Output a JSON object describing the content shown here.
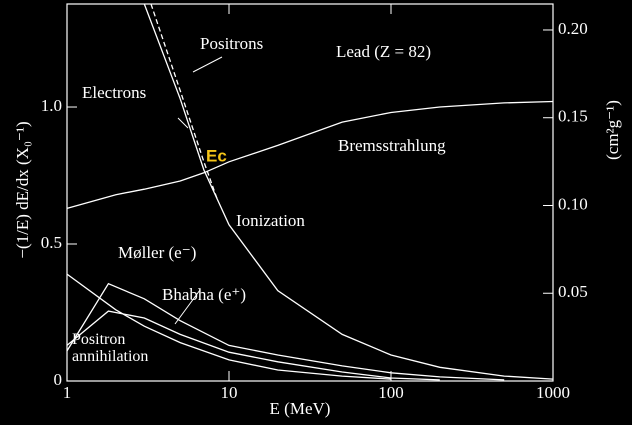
{
  "chart_data": {
    "type": "line",
    "x_label": "E (MeV)",
    "y_label": "−(1/E) dE/dx (X₀⁻¹)",
    "y2_label": "(cm²g⁻¹)",
    "annotations": [
      "Lead (Z = 82)",
      "Ionization",
      "Ec"
    ],
    "annotation_color": "#f5c518",
    "xscale": "log",
    "xlim": [
      1,
      1000
    ],
    "xticks": [
      1,
      10,
      100,
      1000
    ],
    "ylim": [
      0,
      1.376
    ],
    "yticks": [
      0,
      0.5,
      {
        "value": 1,
        "label": "1.0"
      }
    ],
    "y2lim": [
      0,
      0.2148
    ],
    "y2ticks": [
      {
        "value": 0.05,
        "label": "0.05"
      },
      {
        "value": 0.1,
        "label": "0.10"
      },
      {
        "value": 0.15,
        "label": "0.15"
      },
      {
        "value": 0.2,
        "label": "0.20"
      }
    ],
    "series": [
      {
        "name": "Bremsstrahlung",
        "color": "#ffffff",
        "x": [
          1,
          2,
          3,
          5,
          7,
          10,
          20,
          50,
          100,
          200,
          500,
          1000
        ],
        "values": [
          0.63,
          0.68,
          0.7,
          0.73,
          0.76,
          0.8,
          0.86,
          0.945,
          0.98,
          1.0,
          1.015,
          1.02
        ]
      },
      {
        "name": "Electrons",
        "color": "#ffffff",
        "x": [
          3,
          5,
          7,
          10,
          20,
          50,
          100,
          200,
          500,
          1000
        ],
        "values": [
          1.376,
          1.03,
          0.77,
          0.57,
          0.33,
          0.17,
          0.095,
          0.05,
          0.018,
          0.007
        ]
      },
      {
        "name": "Positrons",
        "color": "#ffffff",
        "dashed": true,
        "x": [
          3.3,
          5,
          7,
          8.5
        ],
        "values": [
          1.376,
          1.06,
          0.8,
          0.66
        ]
      },
      {
        "name": "Møller (e⁻)",
        "color": "#ffffff",
        "x": [
          1,
          1.8,
          3,
          5,
          10,
          20,
          50,
          100,
          200,
          500
        ],
        "values": [
          0.11,
          0.355,
          0.3,
          0.22,
          0.13,
          0.095,
          0.055,
          0.03,
          0.015,
          0.004
        ]
      },
      {
        "name": "Bhabha (e⁺)",
        "color": "#ffffff",
        "x": [
          1,
          1.8,
          3,
          5,
          10,
          20,
          50,
          100,
          200
        ],
        "values": [
          0.13,
          0.255,
          0.23,
          0.17,
          0.105,
          0.07,
          0.033,
          0.011,
          0.004
        ]
      },
      {
        "name": "Positron annihilation",
        "color": "#ffffff",
        "x": [
          1,
          2,
          3,
          5,
          10,
          20,
          50,
          100
        ],
        "values": [
          0.39,
          0.26,
          0.2,
          0.14,
          0.077,
          0.04,
          0.018,
          0.007
        ]
      }
    ]
  }
}
